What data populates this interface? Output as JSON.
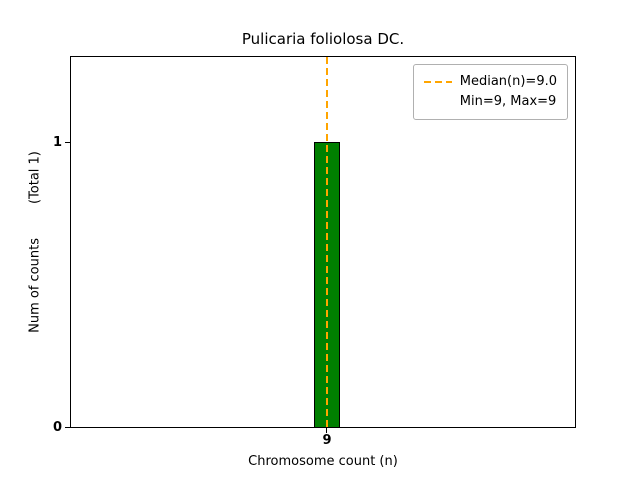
{
  "chart_data": {
    "type": "bar",
    "title": "Pulicaria foliolosa DC.",
    "xlabel": "Chromosome count (n)",
    "ylabel": "Num of counts",
    "ylabel_annotation": "(Total 1)",
    "categories": [
      "9"
    ],
    "values": [
      1
    ],
    "xticks": [
      "9"
    ],
    "yticks": [
      "0",
      "1"
    ],
    "ylim": [
      0,
      1.3
    ],
    "grid": false,
    "bar_color": "#008000",
    "bar_edge_color": "#000000",
    "median_line": {
      "x": 9,
      "value": 9.0,
      "color": "#FFA500",
      "style": "dashed"
    },
    "legend": [
      "Median(n)=9.0",
      "Min=9, Max=9"
    ],
    "legend_position": "upper right",
    "stats": {
      "min": 9,
      "max": 9,
      "median": 9.0,
      "total": 1
    }
  }
}
